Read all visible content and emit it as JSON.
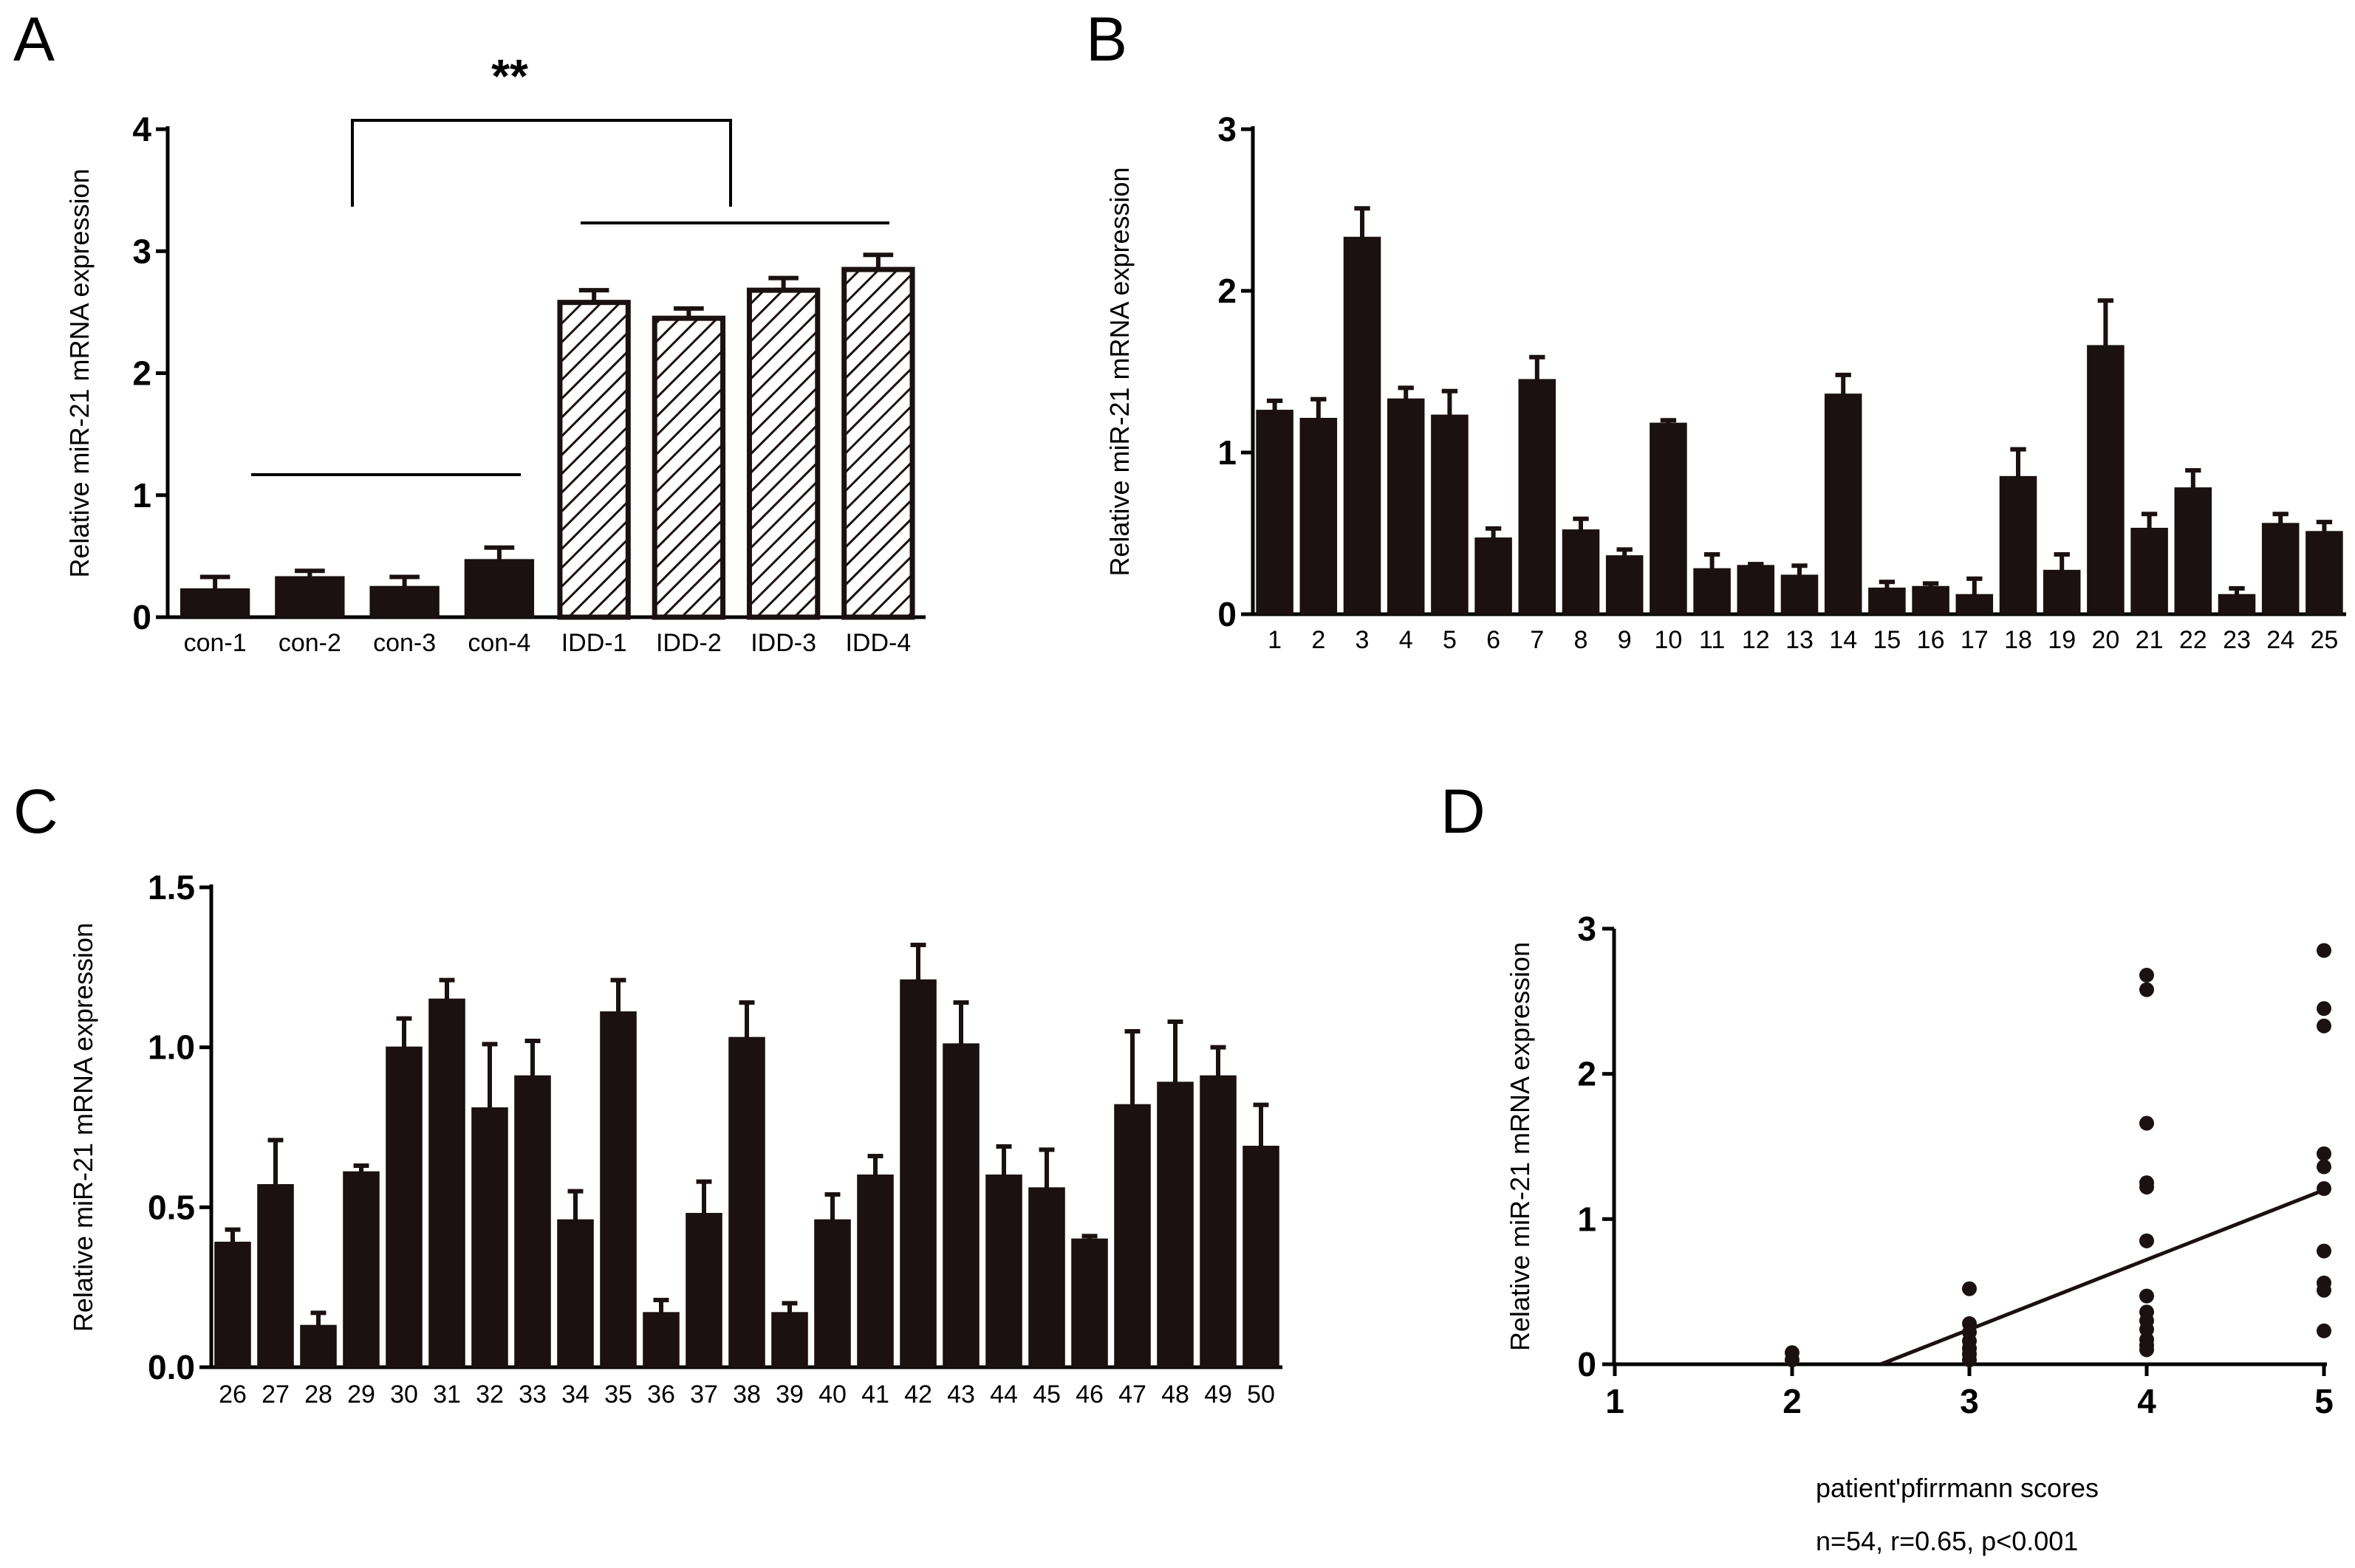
{
  "panels": {
    "a": {
      "label": "A"
    },
    "b": {
      "label": "B"
    },
    "c": {
      "label": "C"
    },
    "d": {
      "label": "D"
    }
  },
  "chart_data": [
    {
      "panel": "A",
      "type": "bar",
      "ylabel": "Relative miR-21 mRNA expression",
      "ylim": [
        0,
        4
      ],
      "yticks": [
        "0",
        "1",
        "2",
        "3",
        "4"
      ],
      "categories": [
        "con-1",
        "con-2",
        "con-3",
        "con-4",
        "IDD-1",
        "IDD-2",
        "IDD-3",
        "IDD-4"
      ],
      "values": [
        0.23,
        0.33,
        0.25,
        0.47,
        2.58,
        2.45,
        2.68,
        2.85
      ],
      "errors": [
        0.1,
        0.05,
        0.08,
        0.1,
        0.1,
        0.08,
        0.1,
        0.12
      ],
      "fill": [
        "solid",
        "solid",
        "solid",
        "solid",
        "hatched",
        "hatched",
        "hatched",
        "hatched"
      ],
      "significance": "**",
      "bar_color": "#1a1110"
    },
    {
      "panel": "B",
      "type": "bar",
      "ylabel": "Relative miR-21 mRNA expression",
      "ylim": [
        0,
        3
      ],
      "yticks": [
        "0",
        "1",
        "2",
        "3"
      ],
      "categories": [
        "1",
        "2",
        "3",
        "4",
        "5",
        "6",
        "7",
        "8",
        "9",
        "10",
        "11",
        "12",
        "13",
        "14",
        "15",
        "16",
        "17",
        "18",
        "19",
        "20",
        "21",
        "22",
        "23",
        "24",
        "25"
      ],
      "values": [
        1.26,
        1.21,
        2.33,
        1.33,
        1.23,
        0.47,
        1.45,
        0.52,
        0.36,
        1.18,
        0.28,
        0.3,
        0.24,
        1.36,
        0.16,
        0.17,
        0.12,
        0.85,
        0.27,
        1.66,
        0.53,
        0.78,
        0.12,
        0.56,
        0.51
      ],
      "errors": [
        0.06,
        0.12,
        0.18,
        0.07,
        0.15,
        0.06,
        0.14,
        0.07,
        0.04,
        0.02,
        0.09,
        0.01,
        0.06,
        0.12,
        0.04,
        0.02,
        0.1,
        0.17,
        0.1,
        0.28,
        0.09,
        0.11,
        0.04,
        0.06,
        0.06
      ],
      "bar_color": "#1a1110"
    },
    {
      "panel": "C",
      "type": "bar",
      "ylabel": "Relative miR-21 mRNA expression",
      "ylim": [
        0,
        1.5
      ],
      "yticks": [
        "0.0",
        "0.5",
        "1.0",
        "1.5"
      ],
      "categories": [
        "26",
        "27",
        "28",
        "29",
        "30",
        "31",
        "32",
        "33",
        "34",
        "35",
        "36",
        "37",
        "38",
        "39",
        "40",
        "41",
        "42",
        "43",
        "44",
        "45",
        "46",
        "47",
        "48",
        "49",
        "50"
      ],
      "values": [
        0.39,
        0.57,
        0.13,
        0.61,
        1.0,
        1.15,
        0.81,
        0.91,
        0.46,
        1.11,
        0.17,
        0.48,
        1.03,
        0.17,
        0.46,
        0.6,
        1.21,
        1.01,
        0.6,
        0.56,
        0.4,
        0.82,
        0.89,
        0.91,
        0.69
      ],
      "errors": [
        0.04,
        0.14,
        0.04,
        0.02,
        0.09,
        0.06,
        0.2,
        0.11,
        0.09,
        0.1,
        0.04,
        0.1,
        0.11,
        0.03,
        0.08,
        0.06,
        0.11,
        0.13,
        0.09,
        0.12,
        0.01,
        0.23,
        0.19,
        0.09,
        0.13
      ],
      "bar_color": "#1a1110"
    },
    {
      "panel": "D",
      "type": "scatter",
      "xlabel": "patient'pfirrmann scores",
      "ylabel": "Relative miR-21 mRNA expression",
      "xlim": [
        1,
        5
      ],
      "ylim": [
        0,
        3
      ],
      "xticks": [
        "1",
        "2",
        "3",
        "4",
        "5"
      ],
      "yticks": [
        "0",
        "1",
        "2",
        "3"
      ],
      "annotation": "n=54, r=0.65, p<0.001",
      "points": [
        [
          2,
          0.08
        ],
        [
          2,
          0.03
        ],
        [
          3,
          0.52
        ],
        [
          3,
          0.28
        ],
        [
          3,
          0.22
        ],
        [
          3,
          0.16
        ],
        [
          3,
          0.11
        ],
        [
          3,
          0.07
        ],
        [
          3,
          0.03
        ],
        [
          4,
          2.68
        ],
        [
          4,
          2.58
        ],
        [
          4,
          1.66
        ],
        [
          4,
          1.25
        ],
        [
          4,
          1.22
        ],
        [
          4,
          0.85
        ],
        [
          4,
          0.47
        ],
        [
          4,
          0.36
        ],
        [
          4,
          0.3
        ],
        [
          4,
          0.24
        ],
        [
          4,
          0.17
        ],
        [
          4,
          0.13
        ],
        [
          4,
          0.1
        ],
        [
          5,
          2.85
        ],
        [
          5,
          2.45
        ],
        [
          5,
          2.33
        ],
        [
          5,
          1.45
        ],
        [
          5,
          1.36
        ],
        [
          5,
          1.21
        ],
        [
          5,
          0.78
        ],
        [
          5,
          0.56
        ],
        [
          5,
          0.51
        ],
        [
          5,
          0.23
        ]
      ],
      "fit_line": {
        "x": [
          2.5,
          5
        ],
        "y": [
          0,
          1.2
        ]
      },
      "point_color": "#1a1110"
    }
  ]
}
